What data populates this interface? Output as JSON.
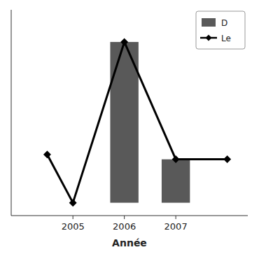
{
  "chart_data": {
    "type": "bar",
    "x_label": "Année",
    "series": [
      {
        "name": "D",
        "type": "bar",
        "color": "#595959",
        "x": [
          2006,
          2007
        ],
        "values": [
          100,
          27
        ]
      },
      {
        "name": "Le",
        "type": "line",
        "color": "#000000",
        "marker": "diamond",
        "x": [
          2004.5,
          2005,
          2006,
          2007,
          2008
        ],
        "values": [
          30,
          0,
          100,
          27,
          27
        ]
      }
    ],
    "xlim": [
      2003.8,
      2008.4
    ],
    "xticks": [
      2005,
      2006,
      2007
    ],
    "ylim": [
      -8,
      120
    ],
    "tick_labels": "x",
    "grid": false,
    "legend": "upper right"
  }
}
